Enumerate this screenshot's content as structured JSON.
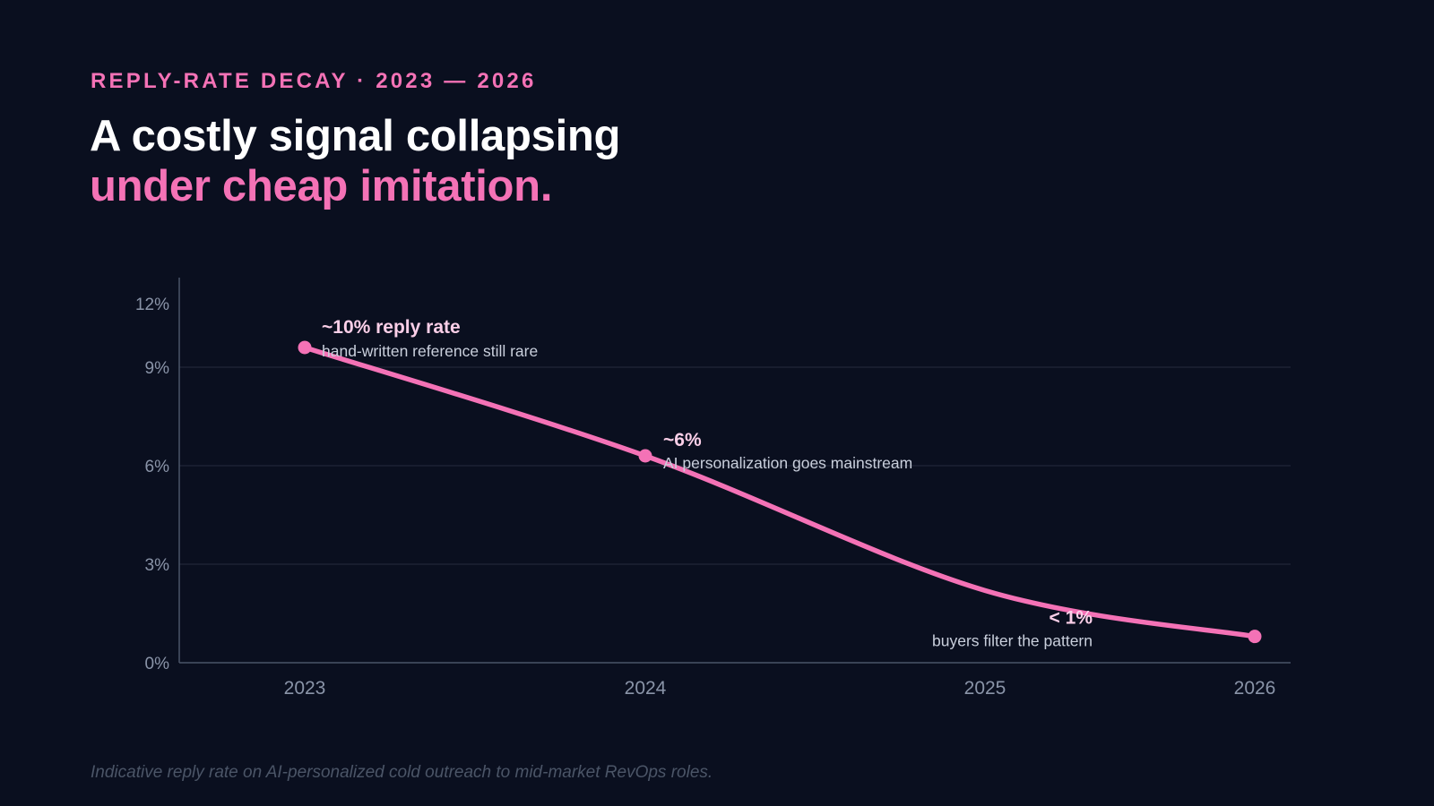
{
  "header": {
    "eyebrow": "REPLY-RATE DECAY · 2023 — 2026",
    "title_line1": "A costly signal collapsing",
    "title_line2": "under cheap imitation."
  },
  "footnote": "Indicative reply rate on AI-personalized cold outreach to mid-market RevOps roles.",
  "colors": {
    "background": "#0a0f1f",
    "accent": "#f472b6",
    "grid": "#1c2233",
    "axis": "#4a5568"
  },
  "chart_data": {
    "type": "line",
    "x": [
      2023,
      2024,
      2025,
      2026
    ],
    "x_tick_labels": [
      "2023",
      "2024",
      "2025",
      "2026"
    ],
    "y_tick_labels": [
      "0%",
      "3%",
      "6%",
      "9%",
      "12%"
    ],
    "y_ticks": [
      0,
      3,
      6,
      9,
      12
    ],
    "ylim": [
      0,
      12
    ],
    "grid": true,
    "series": [
      {
        "values": [
          9.6,
          6.3,
          2.2,
          0.8
        ],
        "markers": [
          2023,
          2024,
          2026
        ]
      }
    ],
    "annotations": [
      {
        "x": 2023,
        "title": "~10% reply rate",
        "subtitle": "hand-written reference still rare"
      },
      {
        "x": 2024,
        "title": "~6%",
        "subtitle": "AI personalization goes mainstream"
      },
      {
        "x": 2026,
        "title": "< 1%",
        "subtitle": "buyers filter the pattern"
      }
    ]
  }
}
